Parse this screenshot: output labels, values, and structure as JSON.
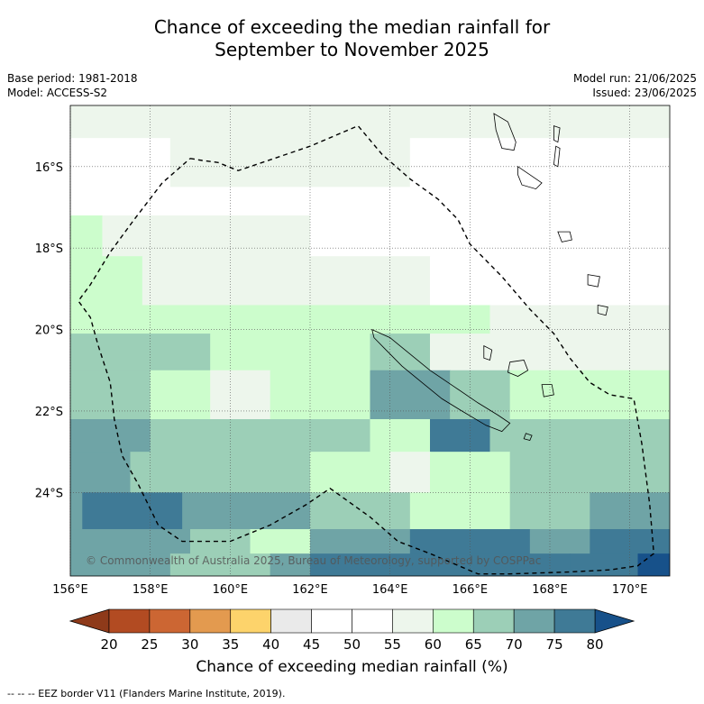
{
  "title": {
    "line1": "Chance of exceeding the median rainfall for",
    "line2": "September to November 2025"
  },
  "meta": {
    "base_period": "Base period: 1981-2018",
    "model": "Model: ACCESS-S2",
    "model_run": "Model run: 21/06/2025",
    "issued": "Issued: 23/06/2025"
  },
  "copyright": "© Commonwealth of Australia 2025, Bureau of Meteorology, supported by COSPPac",
  "colorbar_title": "Chance of exceeding median rainfall (%)",
  "footnote": "-- -- -- EEZ border V11 (Flanders Marine Institute, 2019).",
  "chart_data": {
    "type": "heatmap",
    "map_type": "filled contour map",
    "x_ticks": [
      {
        "value": 156,
        "label": "156°E"
      },
      {
        "value": 158,
        "label": "158°E"
      },
      {
        "value": 160,
        "label": "160°E"
      },
      {
        "value": 162,
        "label": "162°E"
      },
      {
        "value": 164,
        "label": "164°E"
      },
      {
        "value": 166,
        "label": "166°E"
      },
      {
        "value": 168,
        "label": "168°E"
      },
      {
        "value": 170,
        "label": "170°E"
      }
    ],
    "y_ticks": [
      {
        "value": -16,
        "label": "16°S"
      },
      {
        "value": -18,
        "label": "18°S"
      },
      {
        "value": -20,
        "label": "20°S"
      },
      {
        "value": -22,
        "label": "22°S"
      },
      {
        "value": -24,
        "label": "24°S"
      }
    ],
    "lon_range": [
      156,
      171
    ],
    "lat_range": [
      -26.05,
      -14.5
    ],
    "grid": true,
    "colorbar": {
      "boundaries": [
        20,
        25,
        30,
        35,
        40,
        45,
        50,
        55,
        60,
        65,
        70,
        75,
        80
      ],
      "colors": [
        "#b24b22",
        "#cc6633",
        "#e39a4f",
        "#fdd36b",
        "#eaeaea",
        "#ffffff",
        "#ffffff",
        "#edf6ec",
        "#ccfdcc",
        "#9ccfb7",
        "#6fa4a6",
        "#3f7a96"
      ],
      "extend_low_color": "#8e3a1a",
      "extend_high_color": "#17518a"
    },
    "rows": [
      {
        "lat_range": [
          -14.5,
          -15.3
        ],
        "segments": [
          {
            "lon": [
              156,
              171
            ],
            "pct": 57
          }
        ]
      },
      {
        "lat_range": [
          -15.3,
          -16.5
        ],
        "segments": [
          {
            "lon": [
              156,
              158.5
            ],
            "pct": 52
          },
          {
            "lon": [
              158.5,
              164.5
            ],
            "pct": 57
          },
          {
            "lon": [
              164.5,
              171
            ],
            "pct": 52
          }
        ]
      },
      {
        "lat_range": [
          -16.5,
          -17.2
        ],
        "segments": [
          {
            "lon": [
              156,
              160
            ],
            "pct": 52
          },
          {
            "lon": [
              160,
              171
            ],
            "pct": 52
          }
        ]
      },
      {
        "lat_range": [
          -17.2,
          -18.2
        ],
        "segments": [
          {
            "lon": [
              156,
              156.8
            ],
            "pct": 62
          },
          {
            "lon": [
              156.8,
              162
            ],
            "pct": 57
          },
          {
            "lon": [
              162,
              171
            ],
            "pct": 52
          }
        ]
      },
      {
        "lat_range": [
          -18.2,
          -19.4
        ],
        "segments": [
          {
            "lon": [
              156,
              157.8
            ],
            "pct": 62
          },
          {
            "lon": [
              157.8,
              165
            ],
            "pct": 57
          },
          {
            "lon": [
              165,
              171
            ],
            "pct": 52
          }
        ]
      },
      {
        "lat_range": [
          -19.4,
          -20.1
        ],
        "segments": [
          {
            "lon": [
              156,
              162
            ],
            "pct": 62
          },
          {
            "lon": [
              162,
              166.5
            ],
            "pct": 62
          },
          {
            "lon": [
              166.5,
              171
            ],
            "pct": 57
          }
        ]
      },
      {
        "lat_range": [
          -20.1,
          -21.0
        ],
        "segments": [
          {
            "lon": [
              156,
              159.5
            ],
            "pct": 67
          },
          {
            "lon": [
              159.5,
              163.5
            ],
            "pct": 62
          },
          {
            "lon": [
              163.5,
              165
            ],
            "pct": 67
          },
          {
            "lon": [
              165,
              171
            ],
            "pct": 57
          }
        ]
      },
      {
        "lat_range": [
          -21.0,
          -22.2
        ],
        "segments": [
          {
            "lon": [
              156,
              158
            ],
            "pct": 67
          },
          {
            "lon": [
              158,
              159.5
            ],
            "pct": 62
          },
          {
            "lon": [
              159.5,
              161
            ],
            "pct": 57
          },
          {
            "lon": [
              161,
              163.5
            ],
            "pct": 62
          },
          {
            "lon": [
              163.5,
              165.5
            ],
            "pct": 72
          },
          {
            "lon": [
              165.5,
              167
            ],
            "pct": 67
          },
          {
            "lon": [
              167,
              171
            ],
            "pct": 62
          }
        ]
      },
      {
        "lat_range": [
          -22.2,
          -23.0
        ],
        "segments": [
          {
            "lon": [
              156,
              158
            ],
            "pct": 72
          },
          {
            "lon": [
              158,
              163.5
            ],
            "pct": 67
          },
          {
            "lon": [
              163.5,
              165
            ],
            "pct": 62
          },
          {
            "lon": [
              165,
              166.5
            ],
            "pct": 77
          },
          {
            "lon": [
              166.5,
              171
            ],
            "pct": 67
          }
        ]
      },
      {
        "lat_range": [
          -23.0,
          -24.0
        ],
        "segments": [
          {
            "lon": [
              156,
              157.5
            ],
            "pct": 72
          },
          {
            "lon": [
              157.5,
              162
            ],
            "pct": 67
          },
          {
            "lon": [
              162,
              164
            ],
            "pct": 62
          },
          {
            "lon": [
              164,
              165
            ],
            "pct": 57
          },
          {
            "lon": [
              165,
              167
            ],
            "pct": 62
          },
          {
            "lon": [
              167,
              171
            ],
            "pct": 67
          }
        ]
      },
      {
        "lat_range": [
          -24.0,
          -24.9
        ],
        "segments": [
          {
            "lon": [
              156,
              156.3
            ],
            "pct": 72
          },
          {
            "lon": [
              156.3,
              158.8
            ],
            "pct": 77
          },
          {
            "lon": [
              158.8,
              162
            ],
            "pct": 72
          },
          {
            "lon": [
              162,
              164.5
            ],
            "pct": 67
          },
          {
            "lon": [
              164.5,
              167
            ],
            "pct": 62
          },
          {
            "lon": [
              167,
              169
            ],
            "pct": 67
          },
          {
            "lon": [
              169,
              171
            ],
            "pct": 72
          }
        ]
      },
      {
        "lat_range": [
          -24.9,
          -25.5
        ],
        "segments": [
          {
            "lon": [
              156,
              159
            ],
            "pct": 72
          },
          {
            "lon": [
              159,
              160.5
            ],
            "pct": 67
          },
          {
            "lon": [
              160.5,
              162
            ],
            "pct": 62
          },
          {
            "lon": [
              162,
              164.5
            ],
            "pct": 72
          },
          {
            "lon": [
              164.5,
              167.5
            ],
            "pct": 77
          },
          {
            "lon": [
              167.5,
              169
            ],
            "pct": 72
          },
          {
            "lon": [
              169,
              171
            ],
            "pct": 77
          }
        ]
      },
      {
        "lat_range": [
          -25.5,
          -26.05
        ],
        "segments": [
          {
            "lon": [
              156,
              158.5
            ],
            "pct": 72
          },
          {
            "lon": [
              158.5,
              161
            ],
            "pct": 67
          },
          {
            "lon": [
              161,
              162
            ],
            "pct": 72
          },
          {
            "lon": [
              162,
              168.5
            ],
            "pct": 77
          },
          {
            "lon": [
              168.5,
              170.2
            ],
            "pct": 77
          },
          {
            "lon": [
              170.2,
              171
            ],
            "pct": 82
          }
        ]
      }
    ],
    "eez_border": [
      [
        159.0,
        -15.8
      ],
      [
        159.3,
        -15.85
      ],
      [
        159.7,
        -15.9
      ],
      [
        160.2,
        -16.1
      ],
      [
        161.1,
        -15.8
      ],
      [
        162.0,
        -15.5
      ],
      [
        163.2,
        -15.0
      ],
      [
        163.8,
        -15.7
      ],
      [
        164.5,
        -16.3
      ],
      [
        165.2,
        -16.8
      ],
      [
        165.7,
        -17.3
      ],
      [
        166.0,
        -17.9
      ],
      [
        166.8,
        -18.7
      ],
      [
        167.5,
        -19.5
      ],
      [
        168.1,
        -20.1
      ],
      [
        168.5,
        -20.7
      ],
      [
        169.0,
        -21.3
      ],
      [
        169.5,
        -21.6
      ],
      [
        170.1,
        -21.7
      ],
      [
        170.3,
        -22.8
      ],
      [
        170.5,
        -24.3
      ],
      [
        170.6,
        -25.5
      ],
      [
        170.2,
        -25.8
      ],
      [
        169.5,
        -25.9
      ],
      [
        168.5,
        -25.95
      ],
      [
        167.0,
        -26.0
      ],
      [
        166.2,
        -26.0
      ],
      [
        165.0,
        -25.5
      ],
      [
        164.2,
        -25.2
      ],
      [
        163.5,
        -24.6
      ],
      [
        162.5,
        -23.9
      ],
      [
        161.9,
        -24.3
      ],
      [
        161.0,
        -24.8
      ],
      [
        160.0,
        -25.2
      ],
      [
        158.8,
        -25.2
      ],
      [
        158.2,
        -24.8
      ],
      [
        157.7,
        -23.8
      ],
      [
        157.3,
        -23.1
      ],
      [
        157.1,
        -22.2
      ],
      [
        157.0,
        -21.3
      ],
      [
        156.7,
        -20.4
      ],
      [
        156.5,
        -19.7
      ],
      [
        156.2,
        -19.3
      ],
      [
        156.5,
        -18.9
      ],
      [
        157.0,
        -18.1
      ],
      [
        157.6,
        -17.3
      ],
      [
        158.3,
        -16.4
      ],
      [
        159.0,
        -15.8
      ]
    ],
    "islands": [
      {
        "name": "new-caledonia",
        "outline": [
          [
            163.55,
            -20.0
          ],
          [
            164.0,
            -20.2
          ],
          [
            164.5,
            -20.6
          ],
          [
            165.0,
            -21.0
          ],
          [
            165.6,
            -21.4
          ],
          [
            166.2,
            -21.8
          ],
          [
            166.7,
            -22.1
          ],
          [
            167.0,
            -22.3
          ],
          [
            166.8,
            -22.5
          ],
          [
            166.4,
            -22.35
          ],
          [
            165.8,
            -22.0
          ],
          [
            165.3,
            -21.7
          ],
          [
            164.8,
            -21.3
          ],
          [
            164.3,
            -20.9
          ],
          [
            163.9,
            -20.5
          ],
          [
            163.6,
            -20.2
          ],
          [
            163.55,
            -20.0
          ]
        ]
      },
      {
        "name": "isle-of-pines",
        "outline": [
          [
            167.4,
            -22.55
          ],
          [
            167.55,
            -22.6
          ],
          [
            167.5,
            -22.72
          ],
          [
            167.35,
            -22.68
          ],
          [
            167.4,
            -22.55
          ]
        ]
      },
      {
        "name": "ouvea",
        "outline": [
          [
            166.35,
            -20.4
          ],
          [
            166.55,
            -20.5
          ],
          [
            166.5,
            -20.75
          ],
          [
            166.35,
            -20.7
          ],
          [
            166.35,
            -20.4
          ]
        ]
      },
      {
        "name": "lifou",
        "outline": [
          [
            167.0,
            -20.8
          ],
          [
            167.35,
            -20.75
          ],
          [
            167.45,
            -21.0
          ],
          [
            167.2,
            -21.15
          ],
          [
            166.95,
            -21.05
          ],
          [
            167.0,
            -20.8
          ]
        ]
      },
      {
        "name": "mare",
        "outline": [
          [
            167.8,
            -21.35
          ],
          [
            168.05,
            -21.35
          ],
          [
            168.1,
            -21.6
          ],
          [
            167.85,
            -21.65
          ],
          [
            167.8,
            -21.35
          ]
        ]
      },
      {
        "name": "espiritu-santo",
        "outline": [
          [
            166.6,
            -14.7
          ],
          [
            166.95,
            -14.9
          ],
          [
            167.15,
            -15.4
          ],
          [
            167.1,
            -15.6
          ],
          [
            166.8,
            -15.55
          ],
          [
            166.65,
            -15.1
          ],
          [
            166.6,
            -14.7
          ]
        ]
      },
      {
        "name": "malakula",
        "outline": [
          [
            167.2,
            -16.0
          ],
          [
            167.5,
            -16.2
          ],
          [
            167.8,
            -16.4
          ],
          [
            167.65,
            -16.55
          ],
          [
            167.3,
            -16.45
          ],
          [
            167.2,
            -16.2
          ],
          [
            167.2,
            -16.0
          ]
        ]
      },
      {
        "name": "efate",
        "outline": [
          [
            168.2,
            -17.6
          ],
          [
            168.5,
            -17.6
          ],
          [
            168.55,
            -17.8
          ],
          [
            168.3,
            -17.85
          ],
          [
            168.2,
            -17.6
          ]
        ]
      },
      {
        "name": "erromango",
        "outline": [
          [
            168.95,
            -18.65
          ],
          [
            169.25,
            -18.7
          ],
          [
            169.2,
            -18.95
          ],
          [
            168.95,
            -18.9
          ],
          [
            168.95,
            -18.65
          ]
        ]
      },
      {
        "name": "tanna",
        "outline": [
          [
            169.2,
            -19.4
          ],
          [
            169.45,
            -19.45
          ],
          [
            169.4,
            -19.65
          ],
          [
            169.2,
            -19.6
          ],
          [
            169.2,
            -19.4
          ]
        ]
      },
      {
        "name": "maewo",
        "outline": [
          [
            168.1,
            -15.0
          ],
          [
            168.25,
            -15.05
          ],
          [
            168.2,
            -15.4
          ],
          [
            168.1,
            -15.35
          ],
          [
            168.1,
            -15.0
          ]
        ]
      },
      {
        "name": "pentecost",
        "outline": [
          [
            168.15,
            -15.5
          ],
          [
            168.25,
            -15.55
          ],
          [
            168.2,
            -16.0
          ],
          [
            168.1,
            -15.95
          ],
          [
            168.15,
            -15.5
          ]
        ]
      }
    ]
  }
}
